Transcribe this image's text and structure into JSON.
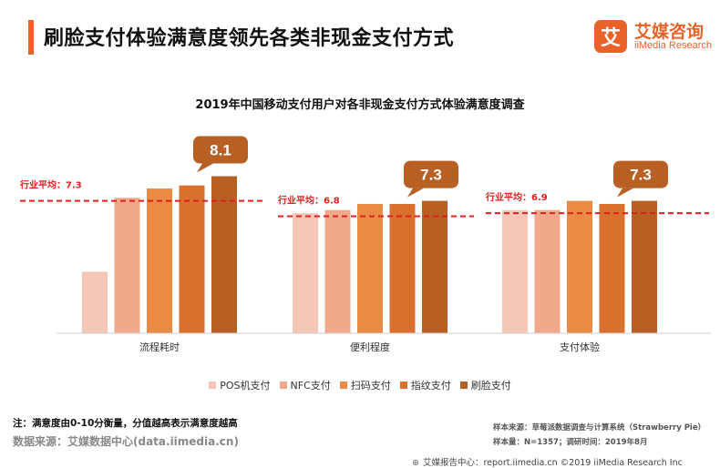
{
  "page": {
    "title": "刷脸支付体验满意度领先各类非现金支付方式",
    "logo_glyph": "艾",
    "logo_cn": "艾媒咨询",
    "logo_en": "iiMedia Research"
  },
  "notes": {
    "note": "注：满意度由0-10分衡量，分值越高表示满意度越高",
    "source": "数据来源：艾媒数据中心(data.iimedia.cn)",
    "sample_source": "样本来源：草莓派数据调查与计算系统（Strawberry Pie）",
    "sample_size": "样本量：N=1357；调研时间：2019年8月",
    "footer": "艾媒报告中心：report.iimedia.cn  ©2019  iiMedia Research  Inc"
  },
  "chart_data": {
    "type": "bar",
    "title": "2019年中国移动支付用户对各非现金支付方式体验满意度调查",
    "categories": [
      "流程耗时",
      "便利程度",
      "支付体验"
    ],
    "series": [
      {
        "name": "POS机支付",
        "color": "#f5c7b6",
        "values": [
          5.0,
          6.9,
          7.0
        ]
      },
      {
        "name": "NFC支付",
        "color": "#f0a98b",
        "values": [
          7.4,
          7.0,
          7.0
        ]
      },
      {
        "name": "扫码支付",
        "color": "#e98a45",
        "values": [
          7.7,
          7.2,
          7.3
        ]
      },
      {
        "name": "指纹支付",
        "color": "#d9702e",
        "values": [
          7.8,
          7.2,
          7.2
        ]
      },
      {
        "name": "刷脸支付",
        "color": "#b85f24",
        "values": [
          8.1,
          7.3,
          7.3
        ]
      }
    ],
    "highlight_labels": [
      "8.1",
      "7.3",
      "7.3"
    ],
    "averages": [
      {
        "label": "行业平均：7.3",
        "value": 7.3
      },
      {
        "label": "行业平均：6.8",
        "value": 6.8
      },
      {
        "label": "行业平均：6.9",
        "value": 6.9
      }
    ],
    "ylim": [
      3,
      8.5
    ],
    "grid": false,
    "legend_position": "bottom"
  }
}
